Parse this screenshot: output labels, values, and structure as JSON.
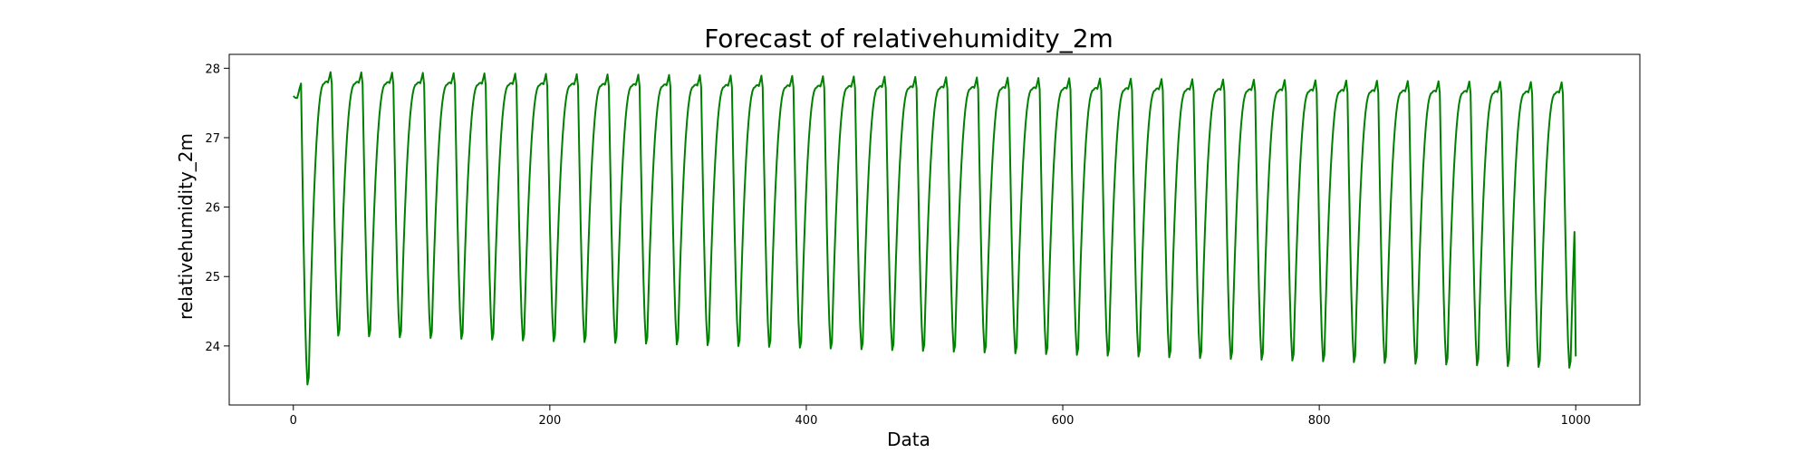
{
  "chart_data": {
    "type": "line",
    "title": "Forecast of relativehumidity_2m",
    "xlabel": "Data",
    "ylabel": "relativehumidity_2m",
    "xlim": [
      -50,
      1050
    ],
    "ylim": [
      23.15,
      28.2
    ],
    "x_ticks": [
      0,
      200,
      400,
      600,
      800,
      1000
    ],
    "y_ticks": [
      24,
      25,
      26,
      27,
      28
    ],
    "grid": false,
    "legend": "none",
    "series": [
      {
        "color": "#008000",
        "x_start": 0,
        "x_end": 1000,
        "period": 24,
        "start_value": 27.6,
        "peaks_first": 27.95,
        "peaks_last": 27.8,
        "troughs_first": 23.35,
        "troughs_second": 24.07,
        "troughs_last": 23.6,
        "end_value": 23.85
      }
    ]
  }
}
